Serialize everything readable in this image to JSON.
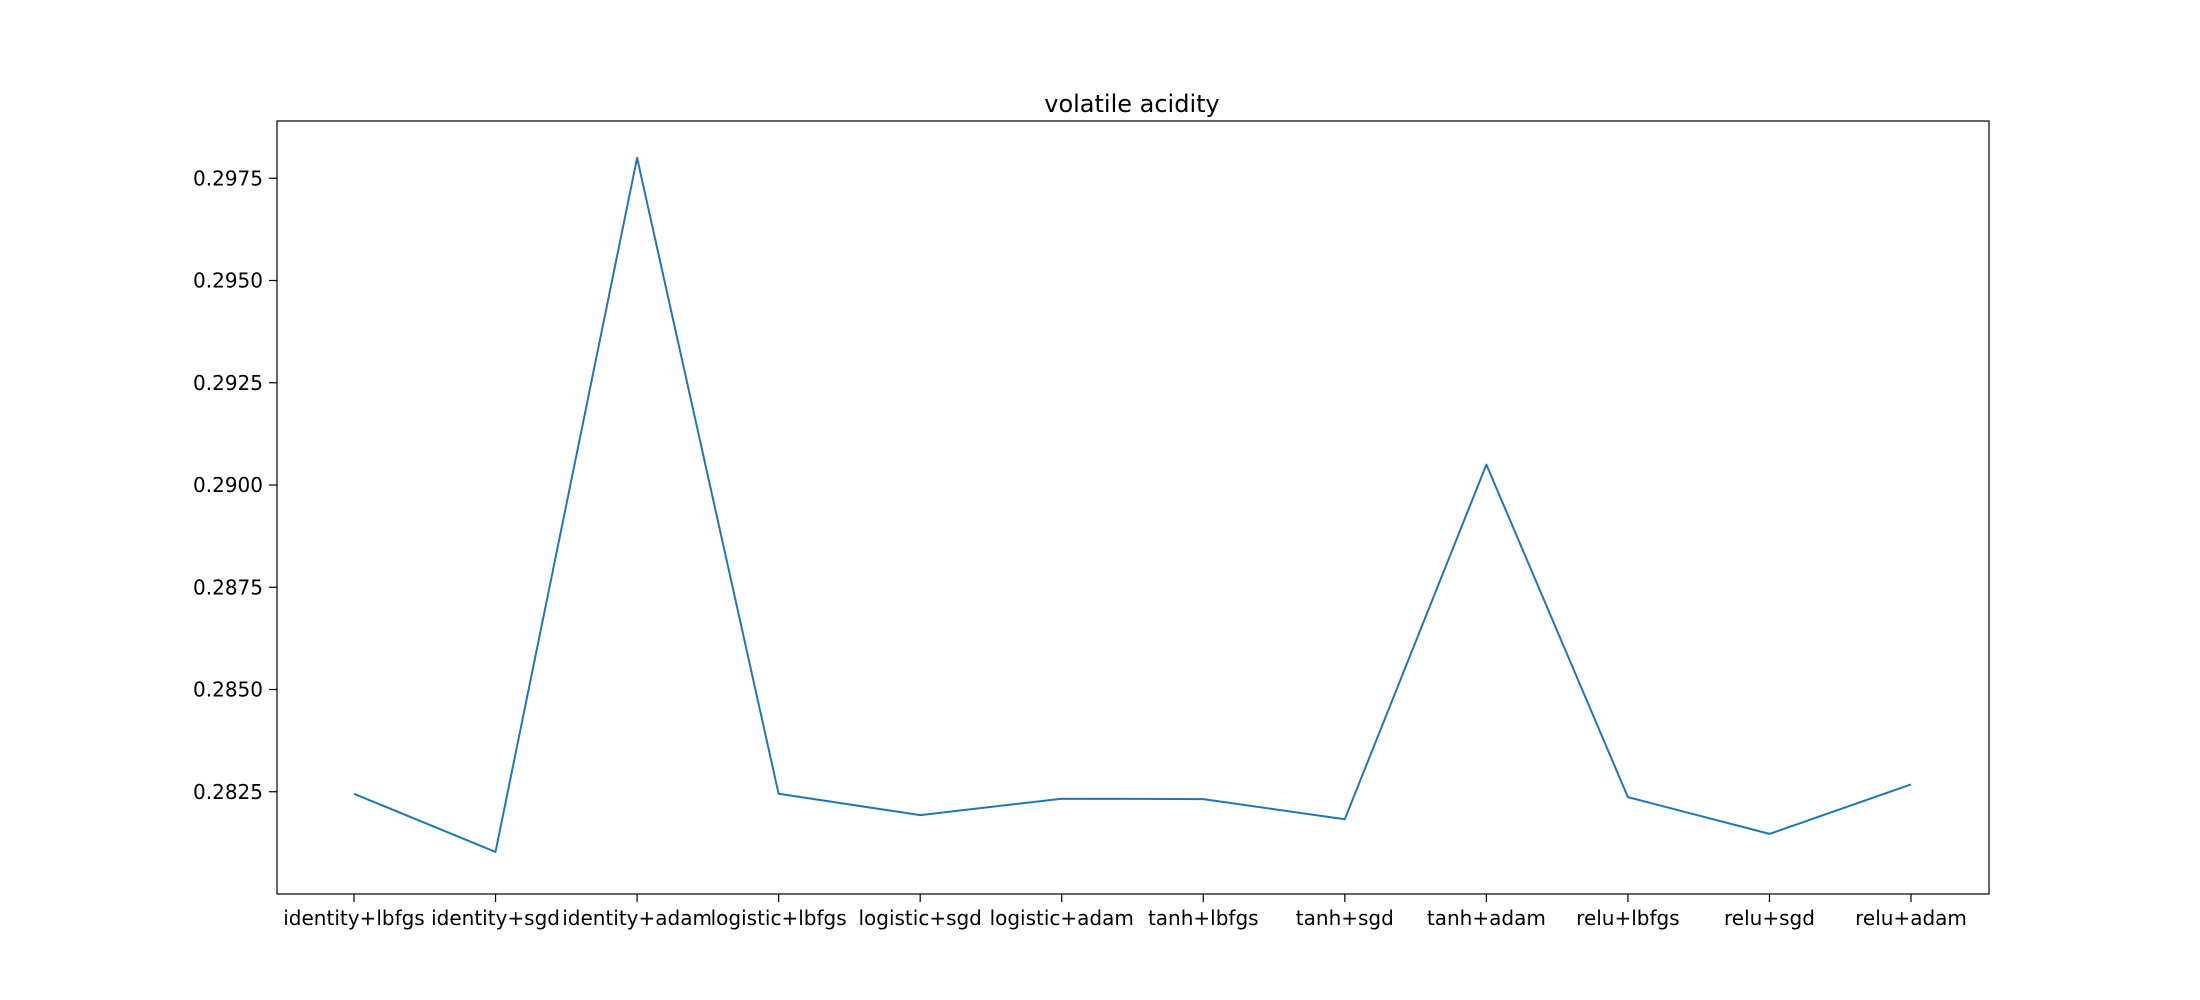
{
  "chart_data": {
    "type": "line",
    "title": "volatile acidity",
    "xlabel": "",
    "ylabel": "",
    "categories": [
      "identity+lbfgs",
      "identity+sgd",
      "identity+adam",
      "logistic+lbfgs",
      "logistic+sgd",
      "logistic+adam",
      "tanh+lbfgs",
      "tanh+sgd",
      "tanh+adam",
      "relu+lbfgs",
      "relu+sgd",
      "relu+adam"
    ],
    "series": [
      {
        "values": [
          0.28245,
          0.28103,
          0.298,
          0.28245,
          0.28193,
          0.28233,
          0.28232,
          0.28183,
          0.2905,
          0.28237,
          0.28147,
          0.28268
        ]
      }
    ],
    "yticks": [
      "0.2825",
      "0.2850",
      "0.2875",
      "0.2900",
      "0.2925",
      "0.2950",
      "0.2975"
    ],
    "ylim": [
      0.28,
      0.2989
    ],
    "grid": false,
    "line_color": "#1f77b4"
  }
}
